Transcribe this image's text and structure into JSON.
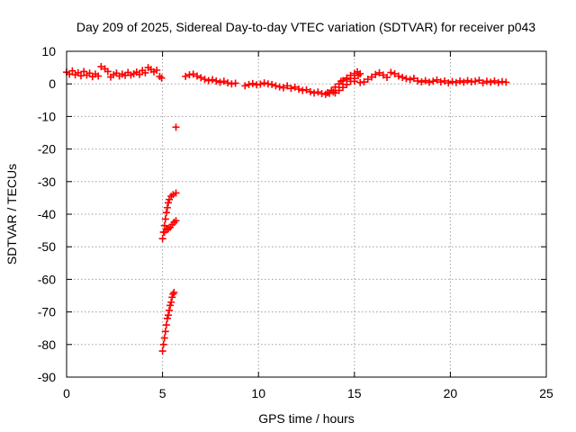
{
  "chart_data": {
    "type": "scatter",
    "title": "Day 209 of 2025, Sidereal Day-to-day VTEC variation (SDTVAR) for receiver p043",
    "xlabel": "GPS time / hours",
    "ylabel": "SDTVAR / TECUs",
    "xlim": [
      0,
      25
    ],
    "ylim": [
      -90,
      10
    ],
    "xticks": [
      0,
      5,
      10,
      15,
      20,
      25
    ],
    "yticks": [
      10,
      0,
      -10,
      -20,
      -30,
      -40,
      -50,
      -60,
      -70,
      -80,
      -90
    ],
    "grid": true,
    "marker": "plus",
    "series": [
      {
        "name": "SDTVAR",
        "color": "#ff0000",
        "points": [
          [
            0.0,
            3.6
          ],
          [
            0.15,
            3.0
          ],
          [
            0.3,
            4.0
          ],
          [
            0.45,
            2.8
          ],
          [
            0.6,
            3.4
          ],
          [
            0.75,
            2.5
          ],
          [
            0.9,
            3.8
          ],
          [
            1.05,
            2.7
          ],
          [
            1.2,
            3.3
          ],
          [
            1.35,
            2.2
          ],
          [
            1.5,
            3.0
          ],
          [
            1.65,
            2.4
          ],
          [
            1.8,
            5.3
          ],
          [
            2.0,
            4.6
          ],
          [
            2.15,
            3.8
          ],
          [
            2.3,
            2.1
          ],
          [
            2.45,
            2.8
          ],
          [
            2.6,
            3.3
          ],
          [
            2.75,
            2.4
          ],
          [
            2.9,
            3.0
          ],
          [
            3.05,
            2.6
          ],
          [
            3.2,
            3.5
          ],
          [
            3.35,
            2.7
          ],
          [
            3.5,
            3.1
          ],
          [
            3.65,
            3.6
          ],
          [
            3.8,
            2.9
          ],
          [
            3.95,
            4.1
          ],
          [
            4.1,
            3.4
          ],
          [
            4.25,
            5.0
          ],
          [
            4.4,
            4.4
          ],
          [
            4.55,
            3.7
          ],
          [
            4.7,
            4.2
          ],
          [
            4.85,
            2.3
          ],
          [
            4.95,
            1.8
          ],
          [
            5.0,
            -82
          ],
          [
            5.05,
            -80
          ],
          [
            5.1,
            -78
          ],
          [
            5.15,
            -76
          ],
          [
            5.2,
            -74
          ],
          [
            5.25,
            -72
          ],
          [
            5.3,
            -71
          ],
          [
            5.35,
            -69.5
          ],
          [
            5.4,
            -68
          ],
          [
            5.45,
            -67
          ],
          [
            5.5,
            -65.5
          ],
          [
            5.55,
            -64.5
          ],
          [
            5.6,
            -64
          ],
          [
            5.0,
            -47.5
          ],
          [
            5.05,
            -45.5
          ],
          [
            5.1,
            -43.5
          ],
          [
            5.15,
            -41.5
          ],
          [
            5.2,
            -39.5
          ],
          [
            5.25,
            -38
          ],
          [
            5.3,
            -36.5
          ],
          [
            5.35,
            -35.5
          ],
          [
            5.45,
            -34.5
          ],
          [
            5.55,
            -34
          ],
          [
            5.7,
            -33.5
          ],
          [
            5.1,
            -45.5
          ],
          [
            5.2,
            -44.8
          ],
          [
            5.3,
            -44.5
          ],
          [
            5.4,
            -44
          ],
          [
            5.5,
            -43.2
          ],
          [
            5.6,
            -42.5
          ],
          [
            5.7,
            -42
          ],
          [
            5.7,
            -13.3
          ],
          [
            6.2,
            2.3
          ],
          [
            6.4,
            2.8
          ],
          [
            6.6,
            3.0
          ],
          [
            6.8,
            2.4
          ],
          [
            7.0,
            1.9
          ],
          [
            7.2,
            1.4
          ],
          [
            7.4,
            1.0
          ],
          [
            7.6,
            1.3
          ],
          [
            7.8,
            0.9
          ],
          [
            8.0,
            0.5
          ],
          [
            8.2,
            0.8
          ],
          [
            8.4,
            0.3
          ],
          [
            8.6,
            0.0
          ],
          [
            8.8,
            0.2
          ],
          [
            9.3,
            -0.6
          ],
          [
            9.5,
            -0.2
          ],
          [
            9.7,
            0.1
          ],
          [
            9.9,
            -0.3
          ],
          [
            10.1,
            -0.1
          ],
          [
            10.3,
            0.3
          ],
          [
            10.5,
            0.0
          ],
          [
            10.7,
            -0.2
          ],
          [
            10.9,
            -0.6
          ],
          [
            11.1,
            -0.9
          ],
          [
            11.3,
            -1.2
          ],
          [
            11.5,
            -0.6
          ],
          [
            11.7,
            -1.4
          ],
          [
            11.9,
            -1.0
          ],
          [
            12.1,
            -1.6
          ],
          [
            12.3,
            -2.0
          ],
          [
            12.5,
            -1.8
          ],
          [
            12.7,
            -2.4
          ],
          [
            12.9,
            -2.8
          ],
          [
            13.1,
            -2.5
          ],
          [
            13.3,
            -3.0
          ],
          [
            13.5,
            -3.2
          ],
          [
            13.7,
            -2.9
          ],
          [
            13.9,
            -2.5
          ],
          [
            13.6,
            -2.7
          ],
          [
            13.8,
            -2.0
          ],
          [
            14.0,
            -1.0
          ],
          [
            14.2,
            0.0
          ],
          [
            14.4,
            1.0
          ],
          [
            14.6,
            1.8
          ],
          [
            14.8,
            2.6
          ],
          [
            15.0,
            3.2
          ],
          [
            15.15,
            3.7
          ],
          [
            14.0,
            -2.8
          ],
          [
            14.2,
            -2.0
          ],
          [
            14.4,
            -1.1
          ],
          [
            14.6,
            -0.2
          ],
          [
            14.8,
            0.8
          ],
          [
            15.0,
            1.7
          ],
          [
            15.2,
            2.6
          ],
          [
            15.3,
            3.1
          ],
          [
            14.3,
            0.8
          ],
          [
            14.6,
            1.4
          ],
          [
            15.0,
            0.8
          ],
          [
            15.3,
            0.4
          ],
          [
            15.5,
            0.6
          ],
          [
            15.7,
            1.4
          ],
          [
            15.9,
            2.1
          ],
          [
            16.1,
            2.9
          ],
          [
            16.3,
            3.4
          ],
          [
            16.5,
            2.7
          ],
          [
            16.7,
            2.0
          ],
          [
            16.9,
            3.5
          ],
          [
            17.1,
            3.1
          ],
          [
            17.3,
            2.4
          ],
          [
            17.5,
            2.0
          ],
          [
            17.7,
            1.6
          ],
          [
            17.9,
            1.3
          ],
          [
            18.1,
            1.7
          ],
          [
            18.3,
            0.9
          ],
          [
            18.5,
            0.6
          ],
          [
            18.7,
            1.0
          ],
          [
            18.9,
            0.5
          ],
          [
            19.1,
            0.8
          ],
          [
            19.3,
            1.2
          ],
          [
            19.5,
            0.6
          ],
          [
            19.7,
            0.9
          ],
          [
            19.9,
            0.3
          ],
          [
            20.1,
            0.7
          ],
          [
            20.3,
            0.4
          ],
          [
            20.5,
            0.9
          ],
          [
            20.7,
            0.5
          ],
          [
            20.9,
            1.0
          ],
          [
            21.1,
            0.6
          ],
          [
            21.3,
            0.8
          ],
          [
            21.5,
            1.1
          ],
          [
            21.7,
            0.3
          ],
          [
            21.9,
            0.8
          ],
          [
            22.1,
            0.5
          ],
          [
            22.3,
            0.9
          ],
          [
            22.5,
            0.4
          ],
          [
            22.7,
            0.7
          ],
          [
            22.9,
            0.5
          ]
        ]
      }
    ]
  }
}
